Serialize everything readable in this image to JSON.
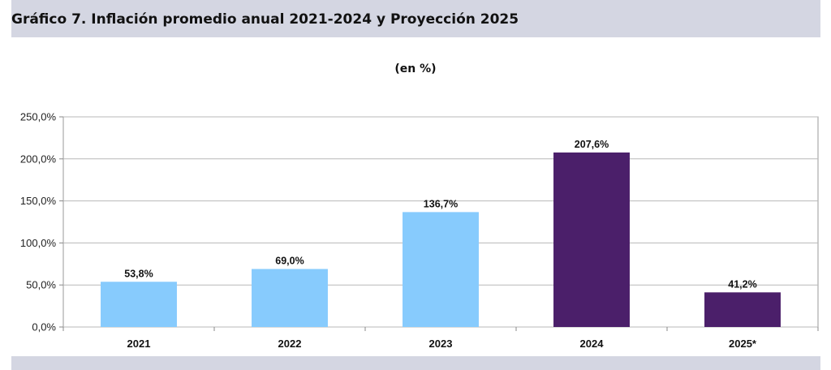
{
  "header": {
    "title": "Gráfico 7. Inflación promedio anual 2021-2024 y Proyección 2025"
  },
  "chart_data": {
    "type": "bar",
    "subtitle": "(en %)",
    "categories": [
      "2021",
      "2022",
      "2023",
      "2024",
      "2025*"
    ],
    "values": [
      53.8,
      69.0,
      136.7,
      207.6,
      41.2
    ],
    "data_labels": [
      "53,8%",
      "69,0%",
      "136,7%",
      "207,6%",
      "41,2%"
    ],
    "bar_colors": [
      "#87cbfd",
      "#87cbfd",
      "#87cbfd",
      "#4b1f6a",
      "#4b1f6a"
    ],
    "ylim": [
      0,
      250
    ],
    "yticks": [
      0,
      50,
      100,
      150,
      200,
      250
    ],
    "ytick_labels": [
      "0,0%",
      "50,0%",
      "100,0%",
      "150,0%",
      "200,0%",
      "250,0%"
    ],
    "xlabel": "",
    "ylabel": "",
    "grid": true,
    "legend": "none"
  }
}
